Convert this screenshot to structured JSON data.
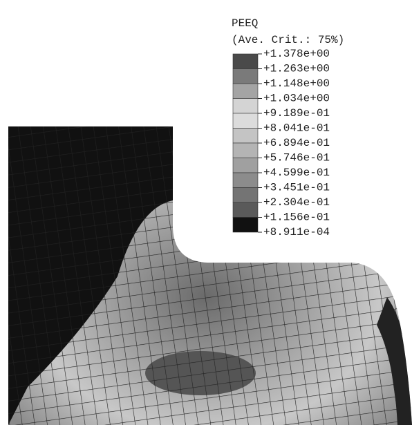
{
  "legend": {
    "title": "PEEQ",
    "subtitle": "(Ave. Crit.: 75%)",
    "labels": [
      "+1.378e+00",
      "+1.263e+00",
      "+1.148e+00",
      "+1.034e+00",
      "+9.189e-01",
      "+8.041e-01",
      "+6.894e-01",
      "+5.746e-01",
      "+4.599e-01",
      "+3.451e-01",
      "+2.304e-01",
      "+1.156e-01",
      "+8.911e-04"
    ],
    "colors": [
      "#4a4a4a",
      "#7a7a7a",
      "#a4a4a4",
      "#d4d4d4",
      "#dcdcdc",
      "#c4c4c4",
      "#b4b4b4",
      "#a0a0a0",
      "#8c8c8c",
      "#747474",
      "#5a5a5a",
      "#111111"
    ]
  }
}
